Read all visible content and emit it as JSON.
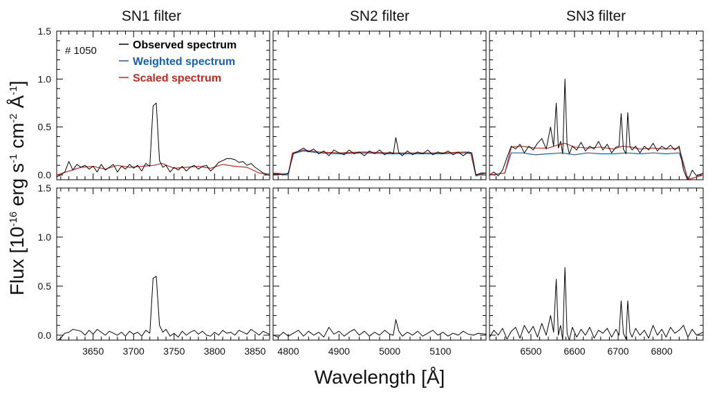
{
  "chart_data": {
    "type": "line",
    "ylabel": "Flux [10-16 erg s-1 cm-2 Å-1]",
    "ylabel_parts": {
      "pre": "Flux [10",
      "exp1": "-16",
      "mid1": " erg s",
      "exp2": "-1",
      "mid2": " cm",
      "exp3": "-2",
      "mid3": " Å",
      "exp4": "-1",
      "post": "]"
    },
    "xlabel": "Wavelength [Å]",
    "ylim": [
      -0.05,
      1.5
    ],
    "yticks": [
      0.0,
      0.5,
      1.0,
      1.5
    ],
    "ytick_labels": [
      "0.0",
      "0.5",
      "1.0",
      "1.5"
    ],
    "galaxy_label": "# 1050",
    "legend": [
      {
        "label": "Observed spectrum",
        "color": "#000000"
      },
      {
        "label": "Weighted spectrum",
        "color": "#1560bd"
      },
      {
        "label": "Scaled spectrum",
        "color": "#c8281e"
      }
    ],
    "colors": {
      "observed": "#000000",
      "weighted": "#1560bd",
      "scaled": "#c8281e"
    },
    "columns": [
      {
        "title": "SN1 filter",
        "xlim": [
          3605,
          3868
        ],
        "xticks": [
          3650,
          3700,
          3750,
          3800,
          3850
        ],
        "xtick_labels": [
          "3650",
          "3700",
          "3750",
          "3800",
          "3850"
        ],
        "top": {
          "observed": {
            "x": [
              3605,
              3610,
              3615,
              3620,
              3625,
              3630,
              3635,
              3640,
              3645,
              3650,
              3655,
              3660,
              3665,
              3670,
              3675,
              3680,
              3685,
              3690,
              3695,
              3700,
              3705,
              3710,
              3715,
              3720,
              3724,
              3728,
              3732,
              3736,
              3740,
              3745,
              3750,
              3755,
              3760,
              3765,
              3770,
              3775,
              3780,
              3785,
              3790,
              3795,
              3800,
              3805,
              3810,
              3815,
              3820,
              3825,
              3830,
              3835,
              3840,
              3845,
              3850,
              3855,
              3860,
              3865,
              3868
            ],
            "y": [
              -0.02,
              0.0,
              0.03,
              0.14,
              0.05,
              0.11,
              0.08,
              0.1,
              0.06,
              0.09,
              0.03,
              0.11,
              0.05,
              0.08,
              0.11,
              0.03,
              0.09,
              0.06,
              0.11,
              0.07,
              0.1,
              0.04,
              0.12,
              0.09,
              0.72,
              0.75,
              0.15,
              0.08,
              0.1,
              0.03,
              0.08,
              0.05,
              0.09,
              0.04,
              0.08,
              0.1,
              0.06,
              0.09,
              0.1,
              0.04,
              0.08,
              0.13,
              0.15,
              0.17,
              0.17,
              0.16,
              0.13,
              0.14,
              0.1,
              0.12,
              0.08,
              0.05,
              0.02,
              0.0,
              0.0
            ]
          },
          "scaled": {
            "x": [
              3605,
              3620,
              3635,
              3650,
              3665,
              3680,
              3695,
              3710,
              3725,
              3735,
              3750,
              3765,
              3780,
              3795,
              3810,
              3825,
              3840,
              3855,
              3868
            ],
            "y": [
              0.0,
              0.04,
              0.08,
              0.09,
              0.06,
              0.1,
              0.08,
              0.09,
              0.1,
              0.12,
              0.07,
              0.08,
              0.09,
              0.07,
              0.11,
              0.09,
              0.08,
              0.02,
              0.01
            ]
          }
        },
        "bottom": {
          "observed": {
            "x": [
              3605,
              3610,
              3615,
              3620,
              3625,
              3630,
              3635,
              3640,
              3645,
              3650,
              3655,
              3660,
              3665,
              3670,
              3675,
              3680,
              3685,
              3690,
              3695,
              3700,
              3705,
              3710,
              3715,
              3720,
              3724,
              3728,
              3732,
              3736,
              3740,
              3745,
              3750,
              3755,
              3760,
              3765,
              3770,
              3775,
              3780,
              3785,
              3790,
              3795,
              3800,
              3805,
              3810,
              3815,
              3820,
              3825,
              3830,
              3835,
              3840,
              3845,
              3850,
              3855,
              3860,
              3865,
              3868
            ],
            "y": [
              -0.06,
              -0.03,
              0.02,
              0.03,
              0.06,
              0.05,
              0.04,
              0.0,
              0.05,
              0.01,
              0.06,
              0.03,
              0.0,
              0.04,
              0.02,
              0.0,
              0.03,
              -0.01,
              0.04,
              0.01,
              0.03,
              -0.01,
              0.05,
              0.02,
              0.58,
              0.6,
              0.1,
              0.03,
              0.06,
              -0.01,
              0.02,
              -0.02,
              0.04,
              0.0,
              0.03,
              0.05,
              0.01,
              0.04,
              0.0,
              -0.01,
              0.03,
              0.0,
              0.05,
              0.02,
              0.03,
              0.0,
              0.05,
              0.03,
              0.01,
              0.06,
              0.03,
              0.0,
              0.04,
              0.02,
              0.01
            ]
          }
        }
      },
      {
        "title": "SN2 filter",
        "xlim": [
          4770,
          5190
        ],
        "xticks": [
          4800,
          4900,
          5000,
          5100
        ],
        "xtick_labels": [
          "4800",
          "4900",
          "5000",
          "5100"
        ],
        "top": {
          "observed": {
            "x": [
              4770,
              4780,
              4790,
              4800,
              4810,
              4820,
              4830,
              4840,
              4850,
              4860,
              4870,
              4880,
              4890,
              4900,
              4910,
              4920,
              4930,
              4940,
              4950,
              4960,
              4970,
              4980,
              4990,
              5000,
              5007,
              5012,
              5018,
              5025,
              5035,
              5045,
              5055,
              5065,
              5075,
              5085,
              5095,
              5105,
              5115,
              5125,
              5135,
              5145,
              5155,
              5162,
              5170,
              5180,
              5190
            ],
            "y": [
              0.01,
              0.01,
              0.0,
              0.02,
              0.22,
              0.25,
              0.28,
              0.24,
              0.27,
              0.22,
              0.25,
              0.2,
              0.26,
              0.23,
              0.21,
              0.26,
              0.22,
              0.24,
              0.2,
              0.25,
              0.22,
              0.26,
              0.21,
              0.24,
              0.22,
              0.39,
              0.23,
              0.2,
              0.25,
              0.21,
              0.24,
              0.22,
              0.26,
              0.21,
              0.24,
              0.22,
              0.25,
              0.21,
              0.24,
              0.2,
              0.24,
              0.23,
              0.0,
              0.02,
              0.02
            ]
          },
          "weighted": {
            "x": [
              4770,
              4800,
              4808,
              4830,
              4860,
              4900,
              4950,
              5000,
              5050,
              5100,
              5150,
              5160,
              5170,
              5190
            ],
            "y": [
              0.01,
              0.0,
              0.22,
              0.25,
              0.23,
              0.22,
              0.23,
              0.22,
              0.22,
              0.22,
              0.23,
              0.22,
              -0.01,
              0.02
            ]
          },
          "scaled": {
            "x": [
              4770,
              4800,
              4808,
              4830,
              4860,
              4900,
              4950,
              5000,
              5050,
              5100,
              5150,
              5160,
              5170,
              5190
            ],
            "y": [
              0.02,
              0.01,
              0.23,
              0.26,
              0.24,
              0.23,
              0.24,
              0.23,
              0.23,
              0.23,
              0.24,
              0.23,
              0.0,
              0.02
            ]
          }
        },
        "bottom": {
          "observed": {
            "x": [
              4770,
              4780,
              4790,
              4800,
              4810,
              4820,
              4830,
              4840,
              4850,
              4860,
              4870,
              4880,
              4890,
              4900,
              4910,
              4920,
              4930,
              4940,
              4950,
              4960,
              4970,
              4980,
              4990,
              5000,
              5007,
              5012,
              5018,
              5025,
              5035,
              5045,
              5055,
              5065,
              5075,
              5085,
              5095,
              5105,
              5115,
              5125,
              5135,
              5145,
              5155,
              5165,
              5175,
              5190
            ],
            "y": [
              0.0,
              -0.02,
              0.03,
              -0.01,
              0.02,
              0.05,
              -0.01,
              0.04,
              0.0,
              0.03,
              -0.02,
              0.08,
              0.01,
              0.04,
              -0.01,
              0.03,
              0.06,
              0.0,
              0.04,
              -0.01,
              0.03,
              0.0,
              0.05,
              0.01,
              0.0,
              0.16,
              0.04,
              -0.01,
              0.03,
              0.0,
              0.04,
              -0.01,
              0.02,
              0.05,
              0.0,
              0.03,
              -0.01,
              0.02,
              0.0,
              0.04,
              0.01,
              0.0,
              0.02,
              0.01
            ]
          }
        }
      },
      {
        "title": "SN3 filter",
        "xlim": [
          6405,
          6895
        ],
        "xticks": [
          6500,
          6600,
          6700,
          6800
        ],
        "xtick_labels": [
          "6500",
          "6600",
          "6700",
          "6800"
        ],
        "top": {
          "observed": {
            "x": [
              6405,
              6415,
              6425,
              6435,
              6445,
              6455,
              6465,
              6475,
              6485,
              6495,
              6505,
              6515,
              6525,
              6535,
              6545,
              6552,
              6558,
              6563,
              6568,
              6573,
              6578,
              6583,
              6588,
              6595,
              6605,
              6615,
              6625,
              6635,
              6645,
              6655,
              6665,
              6675,
              6685,
              6695,
              6702,
              6707,
              6712,
              6718,
              6722,
              6727,
              6732,
              6740,
              6750,
              6760,
              6770,
              6780,
              6790,
              6800,
              6810,
              6820,
              6830,
              6840,
              6850,
              6860,
              6870,
              6880,
              6895
            ],
            "y": [
              0.0,
              0.03,
              -0.01,
              0.05,
              0.18,
              0.3,
              0.27,
              0.32,
              0.23,
              0.3,
              0.26,
              0.33,
              0.38,
              0.27,
              0.5,
              0.3,
              0.75,
              0.28,
              0.35,
              0.22,
              1.0,
              0.32,
              0.22,
              0.3,
              0.26,
              0.34,
              0.25,
              0.3,
              0.27,
              0.35,
              0.26,
              0.32,
              0.23,
              0.29,
              0.3,
              0.64,
              0.27,
              0.22,
              0.65,
              0.3,
              0.26,
              0.3,
              0.23,
              0.3,
              0.26,
              0.33,
              0.25,
              0.3,
              0.27,
              0.31,
              0.26,
              0.3,
              0.05,
              -0.06,
              0.05,
              -0.01,
              0.02
            ]
          },
          "weighted": {
            "x": [
              6405,
              6440,
              6455,
              6480,
              6510,
              6540,
              6570,
              6600,
              6630,
              6660,
              6690,
              6720,
              6750,
              6780,
              6810,
              6840,
              6850,
              6860,
              6895
            ],
            "y": [
              0.0,
              0.02,
              0.23,
              0.23,
              0.21,
              0.22,
              0.23,
              0.21,
              0.23,
              0.22,
              0.22,
              0.23,
              0.22,
              0.23,
              0.22,
              0.23,
              0.1,
              -0.05,
              0.0
            ]
          },
          "scaled": {
            "x": [
              6405,
              6440,
              6455,
              6480,
              6510,
              6540,
              6560,
              6578,
              6600,
              6630,
              6660,
              6690,
              6710,
              6730,
              6750,
              6780,
              6810,
              6840,
              6850,
              6860,
              6895
            ],
            "y": [
              0.0,
              0.02,
              0.29,
              0.3,
              0.28,
              0.28,
              0.31,
              0.33,
              0.29,
              0.28,
              0.29,
              0.27,
              0.3,
              0.29,
              0.27,
              0.28,
              0.27,
              0.28,
              0.12,
              -0.05,
              0.0
            ]
          }
        },
        "bottom": {
          "observed": {
            "x": [
              6405,
              6415,
              6425,
              6435,
              6445,
              6455,
              6465,
              6475,
              6485,
              6495,
              6505,
              6515,
              6525,
              6535,
              6545,
              6552,
              6558,
              6563,
              6568,
              6573,
              6578,
              6583,
              6588,
              6595,
              6605,
              6615,
              6625,
              6635,
              6645,
              6655,
              6665,
              6675,
              6685,
              6695,
              6702,
              6707,
              6712,
              6718,
              6722,
              6727,
              6732,
              6740,
              6750,
              6760,
              6770,
              6780,
              6790,
              6800,
              6810,
              6820,
              6830,
              6840,
              6850,
              6860,
              6870,
              6880,
              6895
            ],
            "y": [
              -0.02,
              0.05,
              0.0,
              0.07,
              -0.04,
              0.04,
              0.08,
              -0.03,
              0.1,
              0.02,
              0.09,
              -0.02,
              0.12,
              0.0,
              0.2,
              0.03,
              0.57,
              0.0,
              0.1,
              -0.05,
              0.69,
              0.02,
              -0.05,
              0.08,
              -0.02,
              0.06,
              0.0,
              0.08,
              -0.03,
              0.05,
              0.02,
              0.07,
              -0.02,
              0.06,
              0.0,
              0.35,
              0.02,
              -0.04,
              0.35,
              0.03,
              -0.02,
              0.07,
              0.0,
              0.05,
              -0.03,
              0.1,
              0.0,
              0.06,
              -0.02,
              0.08,
              0.02,
              0.05,
              0.1,
              -0.02,
              0.06,
              0.0,
              0.03
            ]
          }
        }
      }
    ]
  }
}
